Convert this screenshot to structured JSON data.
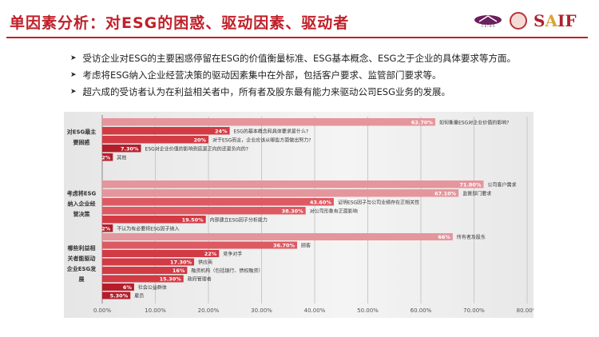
{
  "title": "单因素分析：对ESG的困惑、驱动因素、驱动者",
  "logos": [
    "CEIBS",
    "SJTU",
    "SAIF"
  ],
  "bullets": [
    "受访企业对ESG的主要困惑停留在ESG的价值衡量标准、ESG基本概念、ESG之于企业的具体要求等方面。",
    "考虑将ESG纳入企业经营决策的驱动因素集中在外部，包括客户要求、监管部门要求等。",
    "超六成的受访者认为在利益相关者中，所有者及股东最有能力来驱动公司ESG业务的发展。"
  ],
  "colors": {
    "accent": "#c0202a",
    "dark": "#b51d2b",
    "mid": "#d8474f",
    "light": "#e9a0a6"
  },
  "chart_data": {
    "type": "bar",
    "orientation": "horizontal",
    "xlim": [
      0,
      80
    ],
    "xticks": [
      "0.00%",
      "10.00%",
      "20.00%",
      "30.00%",
      "40.00%",
      "50.00%",
      "60.00%",
      "70.00%",
      "80.00%"
    ],
    "grid": true,
    "groups": [
      {
        "label": [
          "对ESG最主",
          "要困惑"
        ],
        "bars": [
          {
            "value": 62.7,
            "value_label": "62.70%",
            "label": "如何衡量ESG对企业价值的影响?"
          },
          {
            "value": 24,
            "value_label": "24%",
            "label": "ESG的基本概念和具体要求是什么?"
          },
          {
            "value": 20,
            "value_label": "20%",
            "label": "对于ESG而言，企业应该从哪些方面做出努力?"
          },
          {
            "value": 7.3,
            "value_label": "7.30%",
            "label": "ESG对企业价值的影响到底是正向的还是负向的?"
          },
          {
            "value": 2,
            "value_label": "2%",
            "label": "其他"
          }
        ]
      },
      {
        "label": [
          "考虑将ESG",
          "纳入企业经",
          "营决策"
        ],
        "bars": [
          {
            "value": 71.8,
            "value_label": "71.80%",
            "label": "公司客户需求"
          },
          {
            "value": 67.1,
            "value_label": "67.10%",
            "label": "监管部门要求"
          },
          {
            "value": 43.6,
            "value_label": "43.60%",
            "label": "证明ESG因子与公司业绩存在正相关性"
          },
          {
            "value": 38.3,
            "value_label": "38.30%",
            "label": "对公司形象有正面影响"
          },
          {
            "value": 19.5,
            "value_label": "19.50%",
            "label": "内部建立ESG因子分析能力"
          },
          {
            "value": 2,
            "value_label": "2%",
            "label": "不认为有必要将ESG因子纳入"
          }
        ]
      },
      {
        "label": [
          "哪些利益相",
          "关者能驱动",
          "企业ESG发",
          "展"
        ],
        "bars": [
          {
            "value": 66,
            "value_label": "66%",
            "label": "所有者及股东"
          },
          {
            "value": 36.7,
            "value_label": "36.70%",
            "label": "顾客"
          },
          {
            "value": 22,
            "value_label": "22%",
            "label": "竞争对手"
          },
          {
            "value": 17.3,
            "value_label": "17.30%",
            "label": "供应商"
          },
          {
            "value": 16,
            "value_label": "16%",
            "label": "融资机构（包括银行、债权融资）"
          },
          {
            "value": 15.3,
            "value_label": "15.30%",
            "label": "政府管理者"
          },
          {
            "value": 6,
            "value_label": "6%",
            "label": "社会公益群体"
          },
          {
            "value": 5.3,
            "value_label": "5.30%",
            "label": "雇员"
          }
        ]
      }
    ]
  }
}
